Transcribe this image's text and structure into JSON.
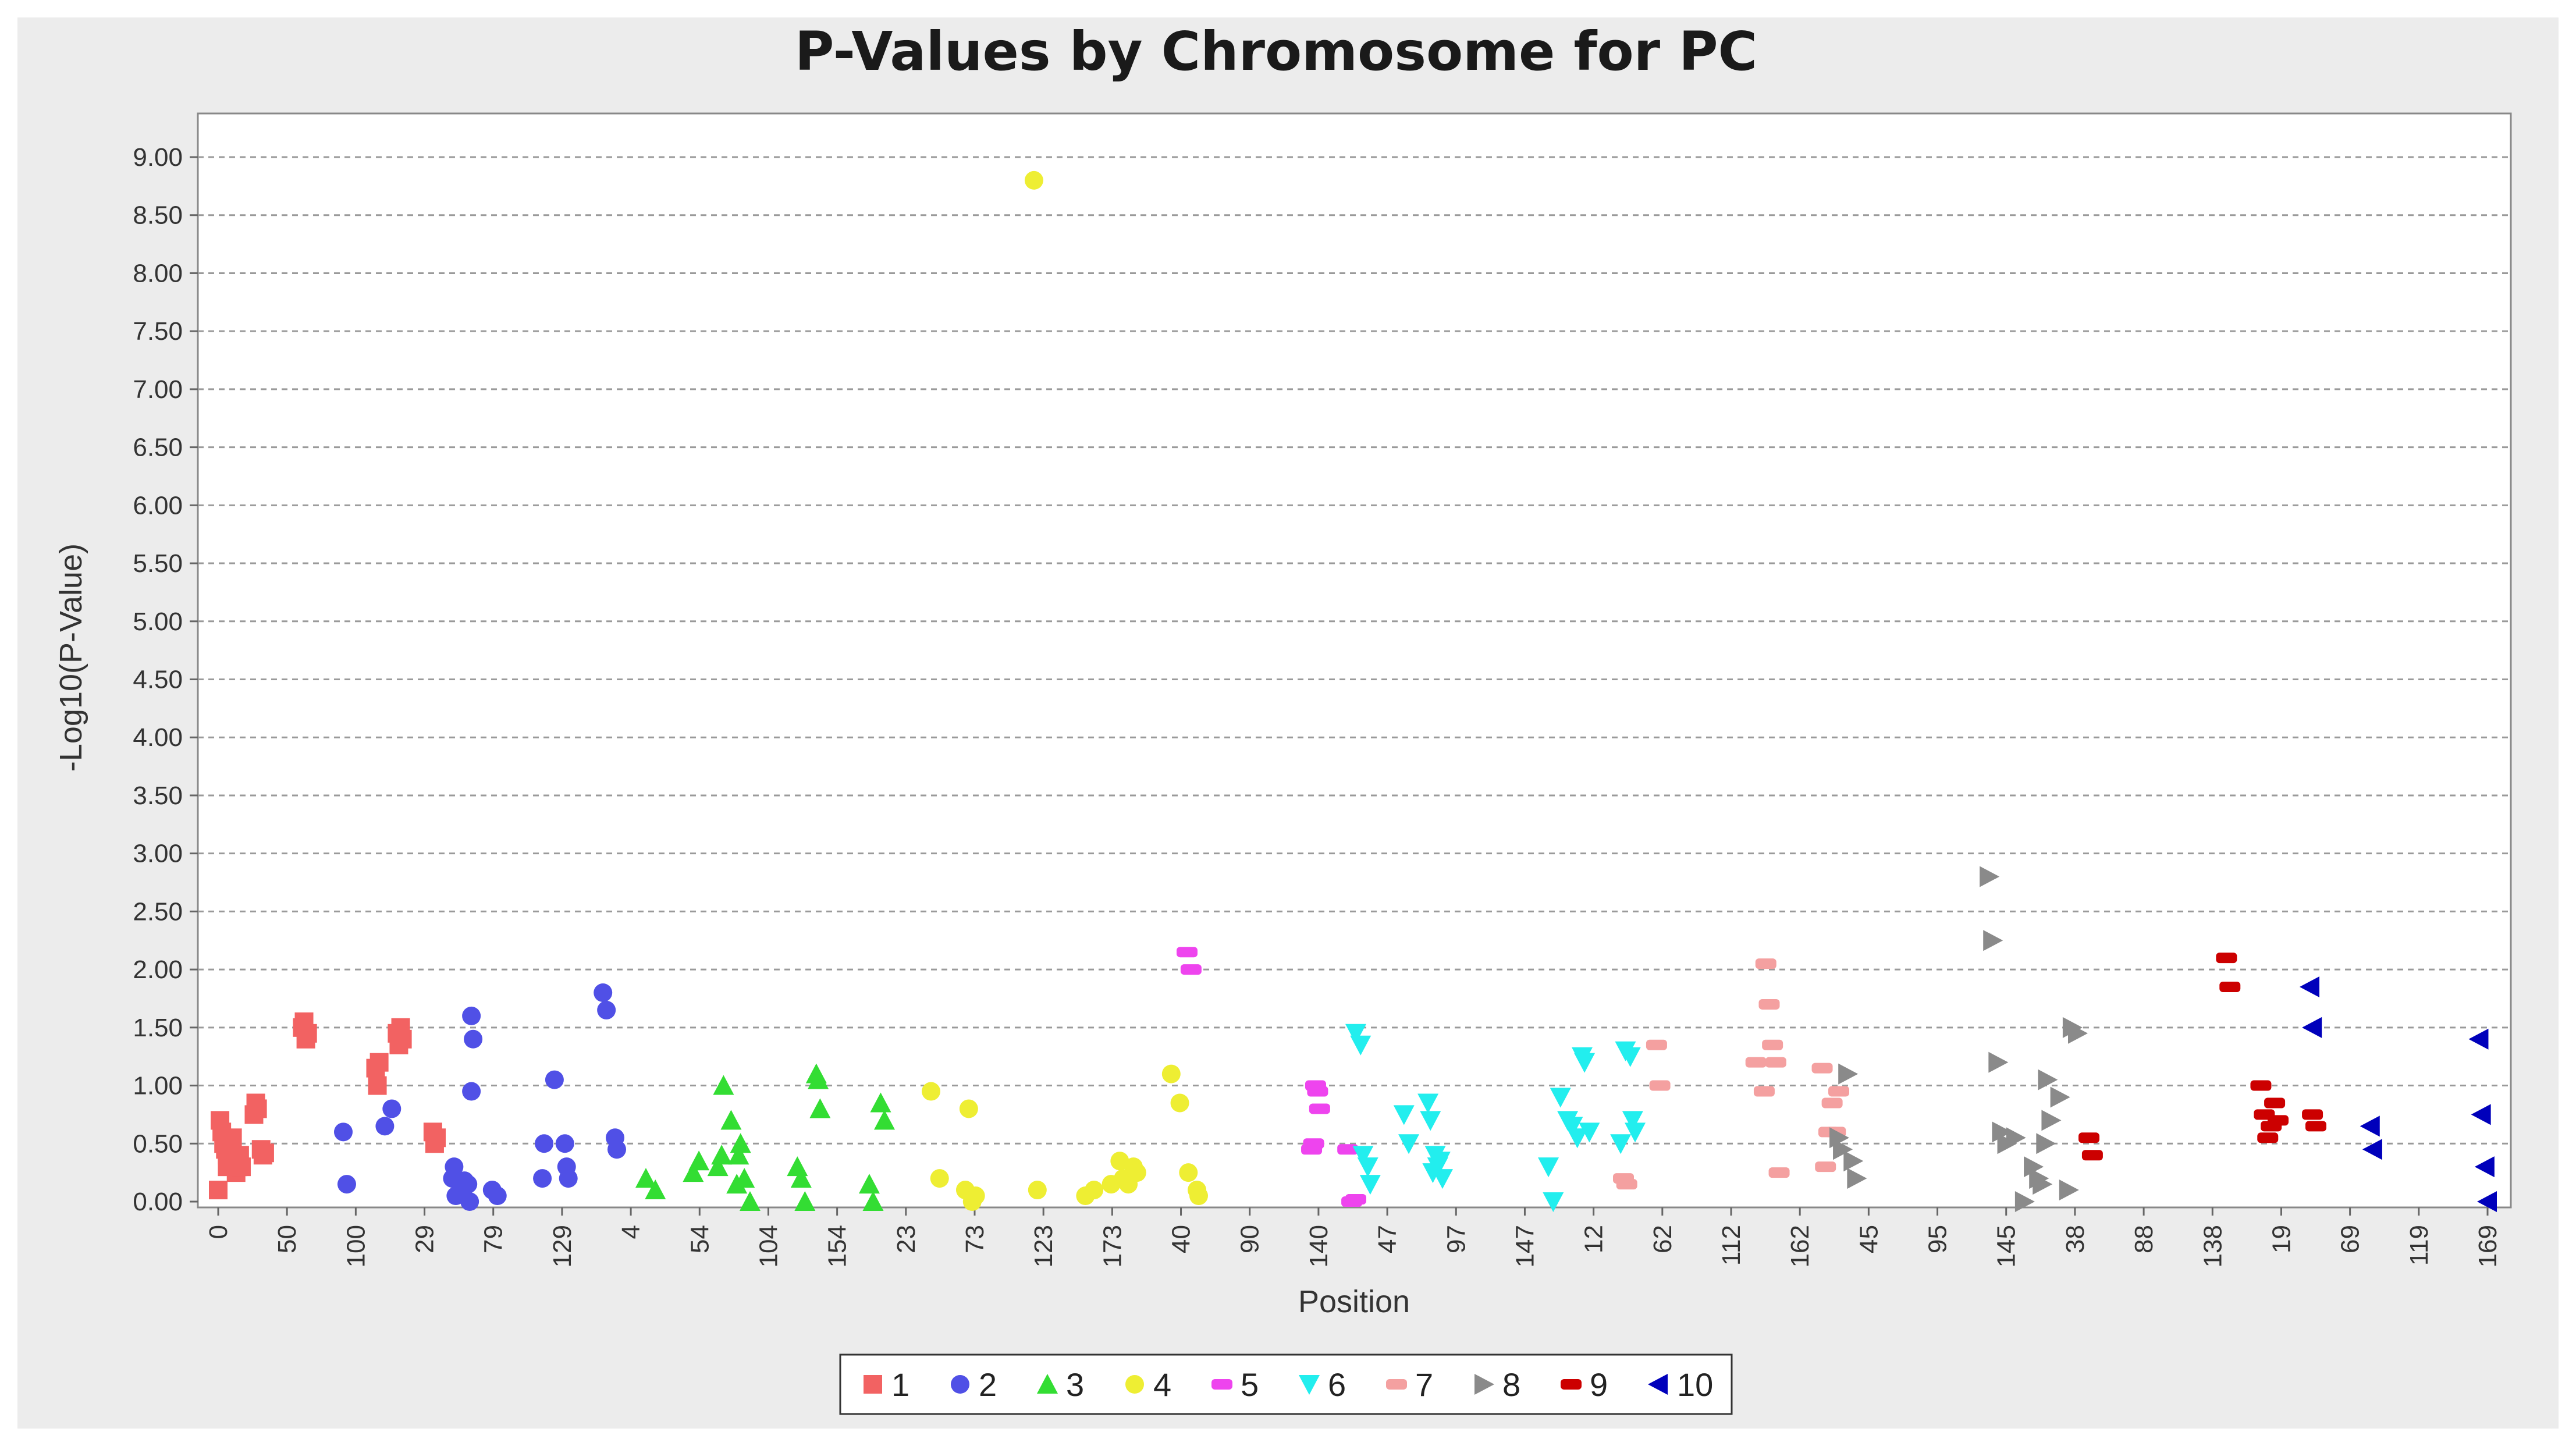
{
  "chart_data": {
    "type": "scatter",
    "title": "P-Values by Chromosome for PC",
    "xlabel": "Position",
    "ylabel": "-Log10(P-Value)",
    "ylim": [
      0,
      9.0
    ],
    "y_ticks": [
      "0.00",
      "0.50",
      "1.00",
      "1.50",
      "2.00",
      "2.50",
      "3.00",
      "3.50",
      "4.00",
      "4.50",
      "5.00",
      "5.50",
      "6.00",
      "6.50",
      "7.00",
      "7.50",
      "8.00",
      "8.50",
      "9.00"
    ],
    "x_tick_labels": [
      "0",
      "50",
      "100",
      "29",
      "79",
      "129",
      "4",
      "54",
      "104",
      "154",
      "23",
      "73",
      "123",
      "173",
      "40",
      "90",
      "140",
      "47",
      "97",
      "147",
      "12",
      "62",
      "112",
      "162",
      "45",
      "95",
      "145",
      "38",
      "88",
      "138",
      "19",
      "69",
      "119",
      "169"
    ],
    "grid": "horizontal dashed",
    "legend_position": "bottom-center",
    "series": [
      {
        "name": "1",
        "color": "#f26262",
        "marker": "square",
        "x": [
          0,
          1,
          2,
          3,
          4,
          5,
          5,
          6,
          7,
          8,
          9,
          10,
          11,
          12,
          13,
          20,
          21,
          22,
          24,
          25,
          26,
          47,
          48,
          49,
          50,
          88,
          89,
          90,
          100,
          101,
          102,
          103,
          120,
          121,
          122
        ],
        "y": [
          0.1,
          0.7,
          0.6,
          0.5,
          0.45,
          0.4,
          0.3,
          0.35,
          0.45,
          0.55,
          0.35,
          0.25,
          0.3,
          0.4,
          0.3,
          0.75,
          0.85,
          0.8,
          0.45,
          0.4,
          0.42,
          1.5,
          1.55,
          1.4,
          1.45,
          1.15,
          1.0,
          1.2,
          1.45,
          1.35,
          1.5,
          1.4,
          0.6,
          0.5,
          0.55
        ]
      },
      {
        "name": "2",
        "color": "#5050e6",
        "marker": "circle",
        "x": [
          0,
          2,
          24,
          28,
          63,
          64,
          65,
          69,
          70,
          72,
          73,
          74,
          74,
          75,
          86,
          89,
          115,
          116,
          122,
          128,
          129,
          130,
          150,
          152,
          157,
          158
        ],
        "y": [
          0.6,
          0.15,
          0.65,
          0.8,
          0.2,
          0.3,
          0.05,
          0.1,
          0.18,
          0.15,
          0.0,
          0.95,
          1.6,
          1.4,
          0.1,
          0.05,
          0.2,
          0.5,
          1.05,
          0.5,
          0.3,
          0.2,
          1.8,
          1.65,
          0.55,
          0.45
        ]
      },
      {
        "name": "3",
        "color": "#33dd33",
        "marker": "triangle-up",
        "x": [
          0,
          5,
          25,
          28,
          38,
          40,
          41,
          45,
          48,
          49,
          50,
          52,
          55,
          80,
          82,
          84,
          90,
          91,
          92,
          118,
          120,
          124,
          126
        ],
        "y": [
          0.2,
          0.1,
          0.25,
          0.35,
          0.3,
          0.4,
          1.0,
          0.7,
          0.15,
          0.4,
          0.5,
          0.2,
          0.0,
          0.3,
          0.2,
          0.0,
          1.1,
          1.05,
          0.8,
          0.15,
          0.0,
          0.85,
          0.7
        ],
        "x_offset": 0
      },
      {
        "name": "4",
        "color": "#eeee33",
        "marker": "circle",
        "x": [
          0,
          5,
          20,
          22,
          24,
          26,
          60,
          62,
          90,
          95,
          105,
          110,
          112,
          115,
          118,
          120,
          140,
          145,
          150,
          155,
          156
        ],
        "y": [
          0.95,
          0.2,
          0.1,
          0.8,
          0.0,
          0.05,
          8.8,
          0.1,
          0.05,
          0.1,
          0.15,
          0.35,
          0.2,
          0.15,
          0.3,
          0.25,
          1.1,
          0.85,
          0.25,
          0.1,
          0.05
        ]
      },
      {
        "name": "5",
        "color": "#ee44ee",
        "marker": "dash",
        "x": [
          0,
          2,
          62,
          63,
          64,
          65,
          66,
          80,
          82,
          84
        ],
        "y": [
          2.15,
          2.0,
          0.45,
          0.5,
          1.0,
          0.95,
          0.8,
          0.45,
          0.0,
          0.02
        ]
      },
      {
        "name": "6",
        "color": "#22eeee",
        "marker": "triangle-down",
        "x": [
          0,
          2,
          3,
          5,
          6,
          20,
          22,
          30,
          31,
          32,
          33,
          34,
          35,
          36,
          80,
          82,
          85,
          88,
          90,
          92,
          94,
          95,
          97,
          110,
          112,
          114,
          115,
          116
        ],
        "y": [
          1.45,
          1.35,
          0.4,
          0.3,
          0.15,
          0.75,
          0.5,
          0.85,
          0.7,
          0.25,
          0.4,
          0.3,
          0.35,
          0.2,
          0.3,
          0.0,
          0.9,
          0.7,
          0.65,
          0.55,
          1.25,
          1.2,
          0.6,
          0.5,
          1.3,
          1.25,
          0.7,
          0.6
        ]
      },
      {
        "name": "7",
        "color": "#f4a0a0",
        "marker": "dash",
        "x": [
          0,
          2,
          20,
          22,
          80,
          85,
          86,
          88,
          90,
          92,
          94,
          120,
          122,
          124,
          126,
          128,
          130
        ],
        "y": [
          0.2,
          0.15,
          1.35,
          1.0,
          1.2,
          0.95,
          2.05,
          1.7,
          1.35,
          1.2,
          0.25,
          1.15,
          0.3,
          0.6,
          0.85,
          0.6,
          0.95
        ]
      },
      {
        "name": "8",
        "color": "#8a8a8a",
        "marker": "triangle-right",
        "x": [
          0,
          2,
          5,
          8,
          10,
          85,
          87,
          90,
          92,
          95,
          100,
          105,
          110,
          113,
          115,
          117,
          118,
          120,
          125,
          130,
          132,
          135
        ],
        "y": [
          0.55,
          0.45,
          1.1,
          0.35,
          0.2,
          2.8,
          2.25,
          1.2,
          0.6,
          0.5,
          0.55,
          0.0,
          0.3,
          0.2,
          0.15,
          0.5,
          1.05,
          0.7,
          0.9,
          0.1,
          1.5,
          1.45
        ]
      },
      {
        "name": "9",
        "color": "#cc0000",
        "marker": "dash",
        "x": [
          0,
          2,
          80,
          82,
          100,
          102,
          104,
          106,
          108,
          110,
          130,
          132
        ],
        "y": [
          0.55,
          0.4,
          2.1,
          1.85,
          1.0,
          0.75,
          0.55,
          0.65,
          0.85,
          0.7,
          0.75,
          0.65
        ]
      },
      {
        "name": "10",
        "color": "#0000bb",
        "marker": "triangle-left",
        "x": [
          0,
          2,
          50,
          52,
          140,
          142,
          145,
          147
        ],
        "y": [
          1.85,
          1.5,
          0.65,
          0.45,
          1.4,
          0.75,
          0.3,
          0.0
        ]
      }
    ]
  }
}
